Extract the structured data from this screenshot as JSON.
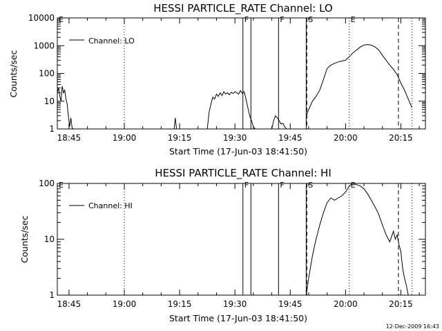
{
  "footer": {
    "timestamp": "12-Dec-2009 16:43"
  },
  "chart_data": [
    {
      "type": "line",
      "title": "HESSI PARTICLE_RATE Channel: LO",
      "xlabel": "Start Time (17-Jun-03 18:41:50)",
      "ylabel": "Counts/sec",
      "yscale": "log",
      "ylim": [
        1,
        10000
      ],
      "xlim": [
        "18:41:50",
        "20:21:40"
      ],
      "xticks": [
        "18:45",
        "19:00",
        "19:15",
        "19:30",
        "19:45",
        "20:00",
        "20:15"
      ],
      "yticks": [
        "1",
        "10",
        "100",
        "1000",
        "10000"
      ],
      "legend": {
        "entry": "Channel: LO",
        "position": "top-left"
      },
      "color": "#000000",
      "markers": [
        {
          "label": "E",
          "time": "18:41:50",
          "style": "none"
        },
        {
          "label": "F",
          "time": "19:32:10",
          "style": "solid"
        },
        {
          "label": "",
          "time": "19:34:20",
          "style": "solid"
        },
        {
          "label": "F",
          "time": "19:41:50",
          "style": "solid"
        },
        {
          "label": "",
          "time": "19:49:20",
          "style": "solid"
        },
        {
          "label": "S",
          "time": "19:49:30",
          "style": "dashed"
        },
        {
          "label": "E",
          "time": "20:01:00",
          "style": "dotted"
        },
        {
          "label": "",
          "time": "20:14:20",
          "style": "dashed"
        },
        {
          "label": "",
          "time": "20:18:00",
          "style": "dotted"
        },
        {
          "label": "",
          "time": "19:00:00",
          "style": "dotted"
        }
      ],
      "series": [
        {
          "segments": [
            {
              "x": [
                "18:41:50",
                "18:42:10",
                "18:42:30",
                "18:42:50",
                "18:43:10",
                "18:43:30",
                "18:43:50",
                "18:44:10",
                "18:44:30",
                "18:44:50",
                "18:45:10",
                "18:45:30",
                "18:45:50",
                "18:46:10",
                "18:46:30"
              ],
              "y": [
                20,
                30,
                15,
                10,
                35,
                20,
                25,
                12,
                8,
                3,
                1.2,
                2.5,
                1.1,
                1,
                1
              ]
            },
            {
              "x": [
                "19:13:30",
                "19:13:50",
                "19:14:10"
              ],
              "y": [
                1,
                2.5,
                1
              ]
            },
            {
              "x": [
                "19:22:30",
                "19:23:00",
                "19:23:30",
                "19:24:00",
                "19:24:30",
                "19:25:00",
                "19:25:30",
                "19:26:00",
                "19:26:30",
                "19:27:00",
                "19:27:30",
                "19:28:00",
                "19:28:30",
                "19:29:00",
                "19:29:30",
                "19:30:00",
                "19:30:30",
                "19:31:00",
                "19:31:30",
                "19:32:00",
                "19:32:30",
                "19:33:00",
                "19:33:30",
                "19:34:00",
                "19:34:30",
                "19:35:00",
                "19:35:30"
              ],
              "y": [
                1,
                4,
                8,
                14,
                12,
                18,
                15,
                20,
                16,
                22,
                18,
                20,
                17,
                21,
                19,
                22,
                20,
                18,
                24,
                19,
                22,
                12,
                6,
                3,
                2,
                1.2,
                1
              ]
            },
            {
              "x": [
                "19:40:00",
                "19:40:30",
                "19:41:00",
                "19:41:30",
                "19:42:00",
                "19:42:30",
                "19:43:00",
                "19:43:30",
                "19:44:00"
              ],
              "y": [
                1,
                2,
                3,
                2.5,
                2,
                1.5,
                1.6,
                1.2,
                1
              ]
            },
            {
              "x": [
                "19:49:20",
                "19:50:00",
                "19:51:00",
                "19:52:00",
                "19:53:00",
                "19:54:00",
                "19:55:00",
                "19:56:00",
                "19:57:00",
                "19:58:00",
                "19:59:00",
                "20:00:00",
                "20:01:00",
                "20:02:00",
                "20:03:00",
                "20:04:00",
                "20:05:00",
                "20:06:00",
                "20:07:00",
                "20:08:00",
                "20:09:00",
                "20:10:00",
                "20:11:00",
                "20:12:00",
                "20:13:00",
                "20:14:00",
                "20:15:00",
                "20:16:00",
                "20:17:00",
                "20:18:00"
              ],
              "y": [
                3,
                5,
                10,
                15,
                25,
                60,
                150,
                200,
                230,
                260,
                280,
                300,
                400,
                550,
                700,
                900,
                1050,
                1100,
                1050,
                900,
                700,
                450,
                300,
                200,
                140,
                90,
                45,
                25,
                12,
                6
              ]
            }
          ]
        }
      ]
    },
    {
      "type": "line",
      "title": "HESSI PARTICLE_RATE Channel: HI",
      "xlabel": "Start Time (17-Jun-03 18:41:50)",
      "ylabel": "Counts/sec",
      "yscale": "log",
      "ylim": [
        1,
        100
      ],
      "xlim": [
        "18:41:50",
        "20:21:40"
      ],
      "xticks": [
        "18:45",
        "19:00",
        "19:15",
        "19:30",
        "19:45",
        "20:00",
        "20:15"
      ],
      "yticks": [
        "1",
        "10",
        "100"
      ],
      "legend": {
        "entry": "Channel: HI",
        "position": "top-left"
      },
      "color": "#000000",
      "markers": [
        {
          "label": "E",
          "time": "18:41:50",
          "style": "none"
        },
        {
          "label": "F",
          "time": "19:32:10",
          "style": "solid"
        },
        {
          "label": "",
          "time": "19:34:20",
          "style": "solid"
        },
        {
          "label": "F",
          "time": "19:41:50",
          "style": "solid"
        },
        {
          "label": "",
          "time": "19:49:20",
          "style": "solid"
        },
        {
          "label": "S",
          "time": "19:49:30",
          "style": "dashed"
        },
        {
          "label": "E",
          "time": "20:01:00",
          "style": "dotted"
        },
        {
          "label": "",
          "time": "20:14:20",
          "style": "dashed"
        },
        {
          "label": "",
          "time": "20:18:00",
          "style": "dotted"
        },
        {
          "label": "",
          "time": "19:00:00",
          "style": "dotted"
        }
      ],
      "series": [
        {
          "segments": [
            {
              "x": [
                "19:49:20",
                "19:50:00",
                "19:51:00",
                "19:52:00",
                "19:53:00",
                "19:54:00",
                "19:55:00",
                "19:56:00",
                "19:57:00",
                "19:58:00",
                "19:59:00",
                "20:00:00",
                "20:01:00",
                "20:02:00",
                "20:03:00",
                "20:04:00",
                "20:05:00",
                "20:06:00",
                "20:07:00",
                "20:08:00",
                "20:09:00",
                "20:10:00",
                "20:11:00",
                "20:12:00",
                "20:13:00",
                "20:13:30",
                "20:14:00",
                "20:14:30",
                "20:15:00",
                "20:15:30",
                "20:16:00",
                "20:16:30",
                "20:17:00"
              ],
              "y": [
                1,
                2,
                5,
                10,
                18,
                30,
                45,
                55,
                50,
                55,
                60,
                70,
                90,
                100,
                95,
                90,
                80,
                65,
                50,
                38,
                28,
                18,
                12,
                9,
                14,
                10,
                12,
                8,
                6,
                3,
                2,
                1.5,
                1
              ]
            }
          ]
        }
      ]
    }
  ]
}
